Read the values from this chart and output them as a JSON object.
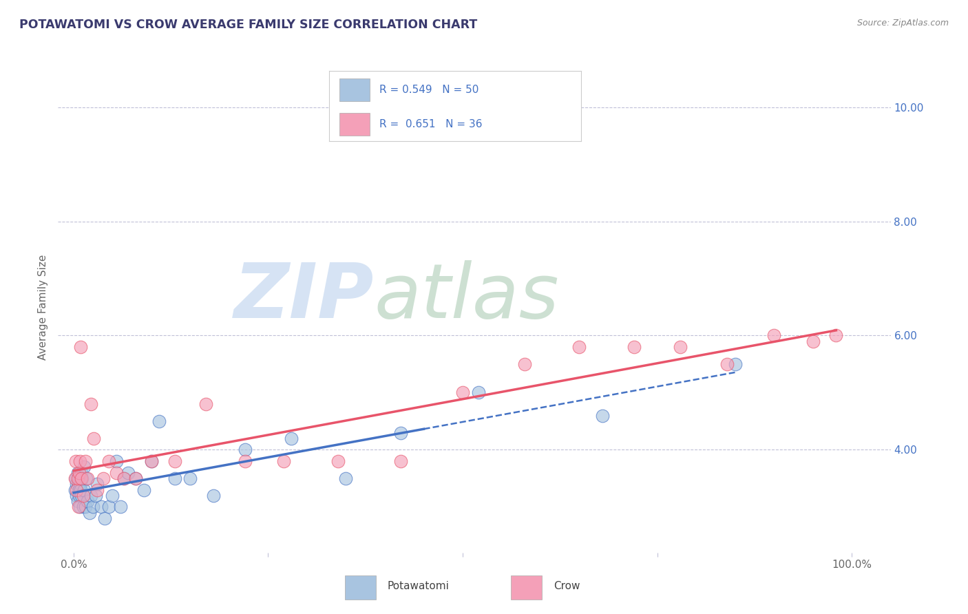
{
  "title": "POTAWATOMI VS CROW AVERAGE FAMILY SIZE CORRELATION CHART",
  "source": "Source: ZipAtlas.com",
  "ylabel": "Average Family Size",
  "xlim": [
    -0.02,
    1.05
  ],
  "ylim": [
    2.2,
    10.8
  ],
  "yticks": [
    4.0,
    6.0,
    8.0,
    10.0
  ],
  "xticks": [
    0.0,
    0.25,
    0.5,
    0.75,
    1.0
  ],
  "xtick_labels": [
    "0.0%",
    "",
    "",
    "",
    "100.0%"
  ],
  "legend_r1": "R = 0.549   N = 50",
  "legend_r2": "R =  0.651   N = 36",
  "potawatomi_color": "#a8c4e0",
  "crow_color": "#f4a0b8",
  "trend_potawatomi_color": "#4472c4",
  "trend_crow_color": "#e8546a",
  "background_color": "#ffffff",
  "title_color": "#3a3a6e",
  "grid_color": "#c0c0d8",
  "ytick_color": "#4472c4",
  "xtick_color": "#666666",
  "potawatomi_x": [
    0.002,
    0.003,
    0.004,
    0.004,
    0.005,
    0.005,
    0.006,
    0.006,
    0.007,
    0.007,
    0.008,
    0.008,
    0.009,
    0.009,
    0.01,
    0.01,
    0.011,
    0.012,
    0.013,
    0.013,
    0.015,
    0.016,
    0.018,
    0.02,
    0.022,
    0.025,
    0.028,
    0.03,
    0.035,
    0.04,
    0.045,
    0.05,
    0.055,
    0.06,
    0.065,
    0.07,
    0.08,
    0.09,
    0.1,
    0.11,
    0.13,
    0.15,
    0.18,
    0.22,
    0.28,
    0.35,
    0.42,
    0.52,
    0.68,
    0.85
  ],
  "potawatomi_y": [
    3.3,
    3.5,
    3.2,
    3.4,
    3.6,
    3.1,
    3.4,
    3.5,
    3.2,
    3.3,
    3.5,
    3.0,
    3.4,
    3.3,
    3.6,
    3.2,
    3.5,
    3.0,
    3.3,
    3.7,
    3.0,
    3.5,
    3.1,
    2.9,
    3.2,
    3.0,
    3.2,
    3.4,
    3.0,
    2.8,
    3.0,
    3.2,
    3.8,
    3.0,
    3.5,
    3.6,
    3.5,
    3.3,
    3.8,
    4.5,
    3.5,
    3.5,
    3.2,
    4.0,
    4.2,
    3.5,
    4.3,
    5.0,
    4.6,
    5.5
  ],
  "crow_x": [
    0.002,
    0.003,
    0.004,
    0.005,
    0.006,
    0.007,
    0.008,
    0.009,
    0.01,
    0.012,
    0.015,
    0.018,
    0.022,
    0.026,
    0.03,
    0.038,
    0.045,
    0.055,
    0.065,
    0.08,
    0.1,
    0.13,
    0.17,
    0.22,
    0.27,
    0.34,
    0.42,
    0.5,
    0.58,
    0.65,
    0.72,
    0.78,
    0.84,
    0.9,
    0.95,
    0.98
  ],
  "crow_y": [
    3.5,
    3.8,
    3.3,
    3.5,
    3.0,
    3.6,
    3.8,
    5.8,
    3.5,
    3.2,
    3.8,
    3.5,
    4.8,
    4.2,
    3.3,
    3.5,
    3.8,
    3.6,
    3.5,
    3.5,
    3.8,
    3.8,
    4.8,
    3.8,
    3.8,
    3.8,
    3.8,
    5.0,
    5.5,
    5.8,
    5.8,
    5.8,
    5.5,
    6.0,
    5.9,
    6.0
  ]
}
